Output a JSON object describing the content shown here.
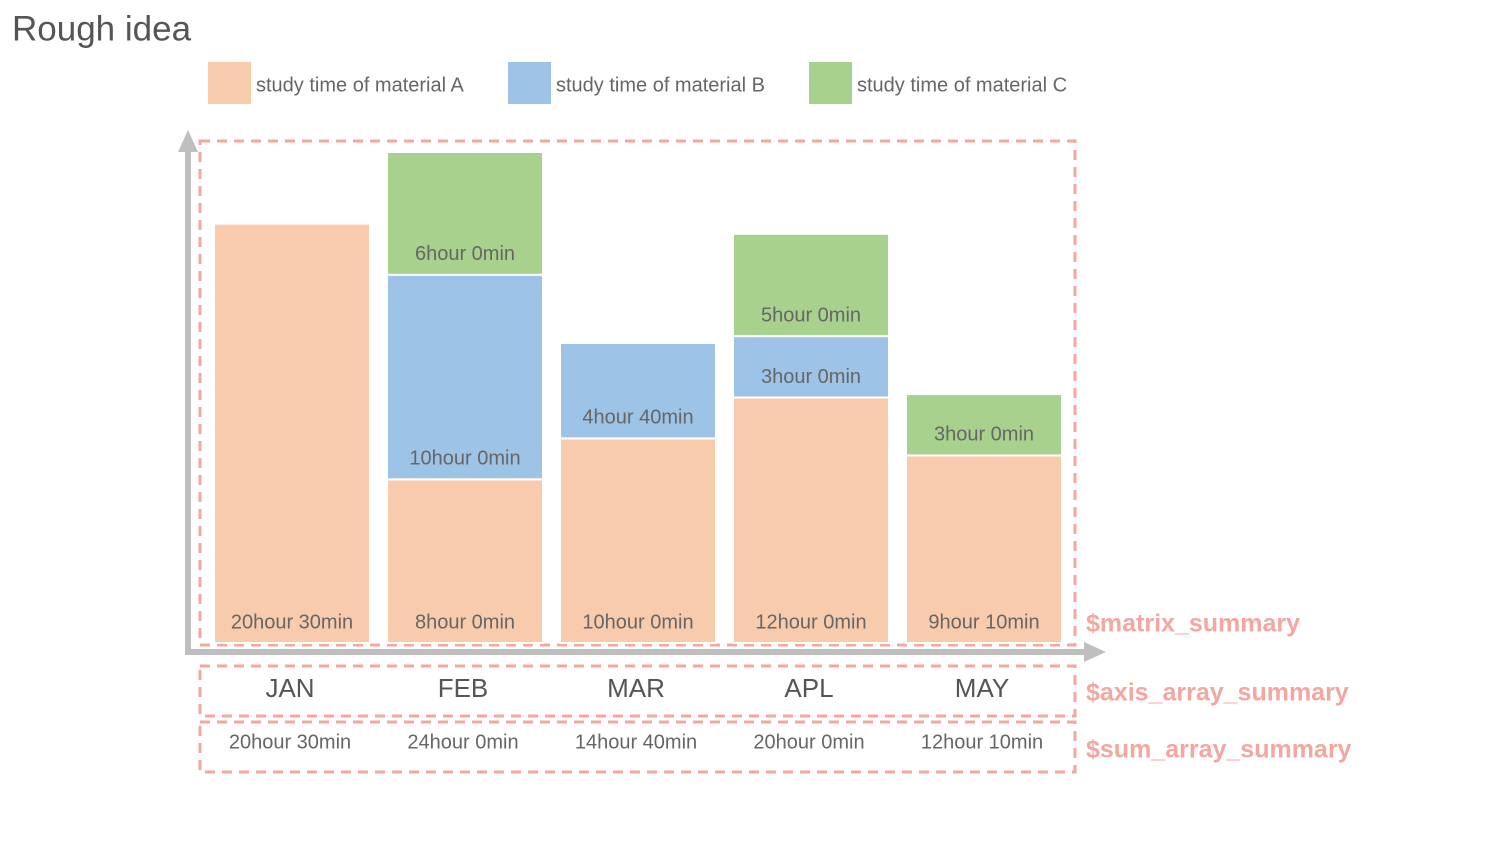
{
  "chart_data": {
    "type": "stacked_bar",
    "title": "Rough idea",
    "categories": [
      "JAN",
      "FEB",
      "MAR",
      "APL",
      "MAY"
    ],
    "series": [
      {
        "name": "study time of material A",
        "color": "#f8cbad",
        "values": [
          20.5,
          8,
          10,
          12,
          9.1667
        ],
        "value_labels": [
          "20hour 30min",
          "8hour 0min",
          "10hour 0min",
          "12hour 0min",
          "9hour 10min"
        ]
      },
      {
        "name": "study time of material B",
        "color": "#9dc3e6",
        "values": [
          null,
          10,
          4.6667,
          3,
          null
        ],
        "value_labels": [
          null,
          "10hour 0min",
          "4hour 40min",
          "3hour 0min",
          null
        ]
      },
      {
        "name": "study time of material C",
        "color": "#a9d18e",
        "values": [
          null,
          6,
          null,
          5,
          3
        ],
        "value_labels": [
          null,
          "6hour 0min",
          null,
          "5hour 0min",
          "3hour 0min"
        ]
      }
    ],
    "totals": {
      "values": [
        20.5,
        24,
        14.6667,
        20,
        12.1667
      ],
      "value_labels": [
        "20hour 30min",
        "24hour 0min",
        "14hour 40min",
        "20hour 0min",
        "12hour 10min"
      ]
    },
    "annotations": [
      "$matrix_summary",
      "$axis_array_summary",
      "$sum_array_summary"
    ]
  }
}
